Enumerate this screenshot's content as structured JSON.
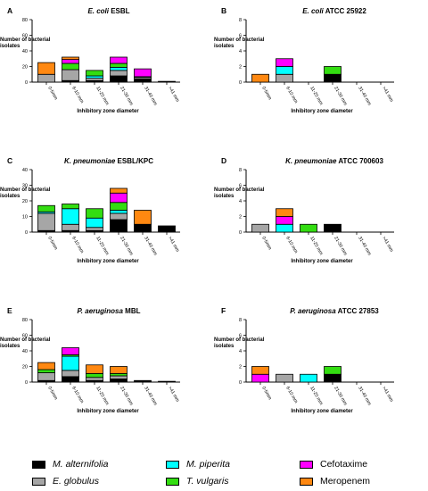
{
  "categories": [
    "0-5mm",
    "6-10 mm",
    "11-20 mm",
    "21-30 mm",
    "31-40 mm",
    ">41 mm"
  ],
  "series_names": [
    "M. alternifolia",
    "E. globulus",
    "M. piperita",
    "T. vulgaris",
    "Cefotaxime",
    "Meropenem"
  ],
  "colors": {
    "M. alternifolia": "#000000",
    "E. globulus": "#a6a6a6",
    "M. piperita": "#00ffff",
    "T. vulgaris": "#33dd11",
    "Cefotaxime": "#ff00ff",
    "Meropenem": "#ff8811"
  },
  "chart_data": [
    {
      "type": "bar",
      "stacked": true,
      "panel": "A",
      "title_italic": "E. coli",
      "title_rest": " ESBL",
      "xlabel": "Inhibitory zone diameter",
      "ylabel": "Number of bacterial isolates",
      "ylim": [
        0,
        80
      ],
      "yticks": [
        0,
        20,
        40,
        60,
        80
      ],
      "categories": [
        "0-5mm",
        "6-10 mm",
        "11-20 mm",
        "21-30 mm",
        "31-40 mm",
        ">41 mm"
      ],
      "series": [
        {
          "name": "M. alternifolia",
          "values": [
            0,
            2,
            2,
            8,
            4,
            1
          ]
        },
        {
          "name": "E. globulus",
          "values": [
            10,
            14,
            3,
            7,
            2,
            0
          ]
        },
        {
          "name": "M. piperita",
          "values": [
            0,
            0,
            3,
            4,
            1,
            0
          ]
        },
        {
          "name": "T. vulgaris",
          "values": [
            0,
            8,
            7,
            5,
            0,
            0
          ]
        },
        {
          "name": "Cefotaxime",
          "values": [
            0,
            5,
            0,
            8,
            10,
            0
          ]
        },
        {
          "name": "Meropenem",
          "values": [
            15,
            3,
            0,
            0,
            0,
            0
          ]
        }
      ]
    },
    {
      "type": "bar",
      "stacked": true,
      "panel": "B",
      "title_italic": "E. coli",
      "title_rest": " ATCC 25922",
      "xlabel": "Inhibitory zone diameter",
      "ylabel": "Number of bacterial isolates",
      "ylim": [
        0,
        8
      ],
      "yticks": [
        0,
        2,
        4,
        6,
        8
      ],
      "categories": [
        "0-5mm",
        "6-10 mm",
        "11-20 mm",
        "21-30 mm",
        "31-40 mm",
        ">41 mm"
      ],
      "series": [
        {
          "name": "M. alternifolia",
          "values": [
            0,
            0,
            0,
            1,
            0,
            0
          ]
        },
        {
          "name": "E. globulus",
          "values": [
            0,
            1,
            0,
            0,
            0,
            0
          ]
        },
        {
          "name": "M. piperita",
          "values": [
            0,
            1,
            0,
            0,
            0,
            0
          ]
        },
        {
          "name": "T. vulgaris",
          "values": [
            0,
            0,
            0,
            1,
            0,
            0
          ]
        },
        {
          "name": "Cefotaxime",
          "values": [
            0,
            1,
            0,
            0,
            0,
            0
          ]
        },
        {
          "name": "Meropenem",
          "values": [
            1,
            0,
            0,
            0,
            0,
            0
          ]
        }
      ]
    },
    {
      "type": "bar",
      "stacked": true,
      "panel": "C",
      "title_italic": "K. pneumoniae",
      "title_rest": " ESBL/KPC",
      "xlabel": "Inhibitory zone diameter",
      "ylabel": "Number of bacterial isolates",
      "ylim": [
        0,
        40
      ],
      "yticks": [
        0,
        10,
        20,
        30,
        40
      ],
      "categories": [
        "0-5mm",
        "6-10 mm",
        "11-20 mm",
        "21-30 mm",
        "31-40 mm",
        ">41 mm"
      ],
      "series": [
        {
          "name": "M. alternifolia",
          "values": [
            1,
            1,
            1,
            8,
            5,
            4
          ]
        },
        {
          "name": "E. globulus",
          "values": [
            11,
            4,
            2,
            4,
            0,
            0
          ]
        },
        {
          "name": "M. piperita",
          "values": [
            1,
            10,
            6,
            2,
            0,
            0
          ]
        },
        {
          "name": "T. vulgaris",
          "values": [
            4,
            3,
            6,
            5,
            0,
            0
          ]
        },
        {
          "name": "Cefotaxime",
          "values": [
            0,
            0,
            0,
            6,
            0,
            0
          ]
        },
        {
          "name": "Meropenem",
          "values": [
            0,
            0,
            0,
            3,
            9,
            0
          ]
        }
      ]
    },
    {
      "type": "bar",
      "stacked": true,
      "panel": "D",
      "title_italic": "K. pneumoniae",
      "title_rest": " ATCC 700603",
      "xlabel": "Inhibitory zone diameter",
      "ylabel": "Number of bacterial isolates",
      "ylim": [
        0,
        8
      ],
      "yticks": [
        0,
        2,
        4,
        6,
        8
      ],
      "categories": [
        "0-5mm",
        "6-10 mm",
        "11-20 mm",
        "21-30 mm",
        "31-40 mm",
        ">41 mm"
      ],
      "series": [
        {
          "name": "M. alternifolia",
          "values": [
            0,
            0,
            0,
            1,
            0,
            0
          ]
        },
        {
          "name": "E. globulus",
          "values": [
            1,
            0,
            0,
            0,
            0,
            0
          ]
        },
        {
          "name": "M. piperita",
          "values": [
            0,
            1,
            0,
            0,
            0,
            0
          ]
        },
        {
          "name": "T. vulgaris",
          "values": [
            0,
            0,
            1,
            0,
            0,
            0
          ]
        },
        {
          "name": "Cefotaxime",
          "values": [
            0,
            1,
            0,
            0,
            0,
            0
          ]
        },
        {
          "name": "Meropenem",
          "values": [
            0,
            1,
            0,
            0,
            0,
            0
          ]
        }
      ]
    },
    {
      "type": "bar",
      "stacked": true,
      "panel": "E",
      "title_italic": "P. aeruginosa",
      "title_rest": " MBL",
      "xlabel": "Inhibitory zone diameter",
      "ylabel": "Number of bacterial isolates",
      "ylim": [
        0,
        80
      ],
      "yticks": [
        0,
        20,
        40,
        60,
        80
      ],
      "categories": [
        "0-5mm",
        "6-10 mm",
        "11-20 mm",
        "21-30 mm",
        "31-40 mm",
        ">41 mm"
      ],
      "series": [
        {
          "name": "M. alternifolia",
          "values": [
            2,
            7,
            2,
            4,
            2,
            1
          ]
        },
        {
          "name": "E. globulus",
          "values": [
            10,
            8,
            4,
            4,
            0,
            0
          ]
        },
        {
          "name": "M. piperita",
          "values": [
            0,
            18,
            0,
            0,
            0,
            0
          ]
        },
        {
          "name": "T. vulgaris",
          "values": [
            4,
            2,
            5,
            3,
            0,
            0
          ]
        },
        {
          "name": "Cefotaxime",
          "values": [
            0,
            9,
            0,
            0,
            0,
            0
          ]
        },
        {
          "name": "Meropenem",
          "values": [
            9,
            0,
            11,
            9,
            0,
            0
          ]
        }
      ]
    },
    {
      "type": "bar",
      "stacked": true,
      "panel": "F",
      "title_italic": "P. aeruginosa",
      "title_rest": " ATCC 27853",
      "xlabel": "Inhibitory zone diameter",
      "ylabel": "Number of bacterial isolates",
      "ylim": [
        0,
        8
      ],
      "yticks": [
        0,
        2,
        4,
        6,
        8
      ],
      "categories": [
        "0-5mm",
        "6-10 mm",
        "11-20 mm",
        "21-30 mm",
        "31-40 mm",
        ">41 mm"
      ],
      "series": [
        {
          "name": "M. alternifolia",
          "values": [
            0,
            0,
            0,
            1,
            0,
            0
          ]
        },
        {
          "name": "E. globulus",
          "values": [
            0,
            1,
            0,
            0,
            0,
            0
          ]
        },
        {
          "name": "M. piperita",
          "values": [
            0,
            0,
            1,
            0,
            0,
            0
          ]
        },
        {
          "name": "T. vulgaris",
          "values": [
            0,
            0,
            0,
            1,
            0,
            0
          ]
        },
        {
          "name": "Cefotaxime",
          "values": [
            1,
            0,
            0,
            0,
            0,
            0
          ]
        },
        {
          "name": "Meropenem",
          "values": [
            1,
            0,
            0,
            0,
            0,
            0
          ]
        }
      ]
    }
  ]
}
